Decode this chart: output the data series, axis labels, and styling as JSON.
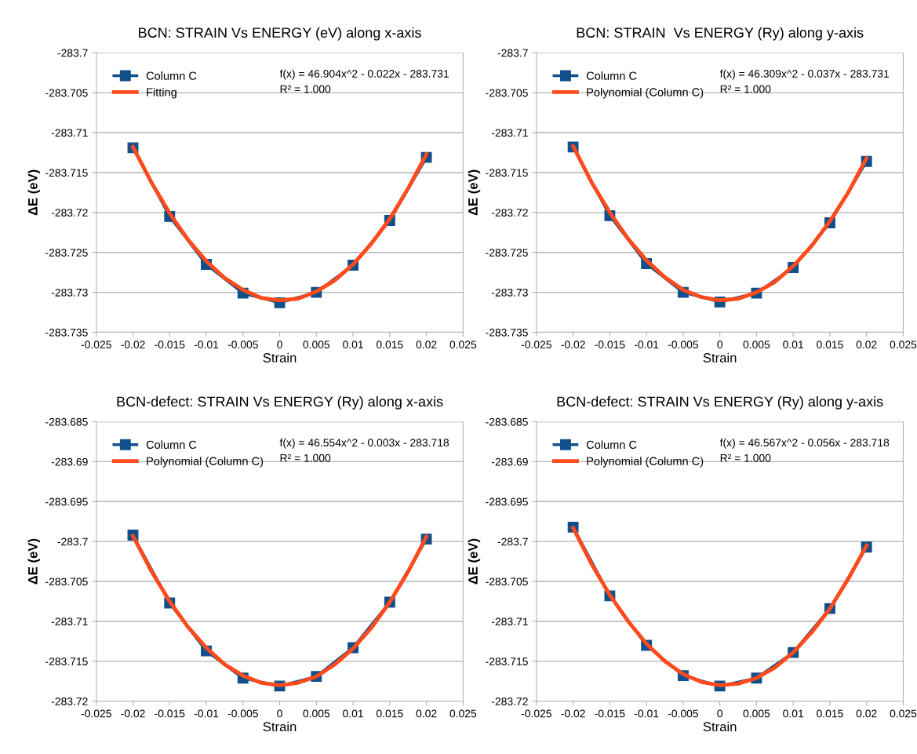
{
  "chart_data": [
    {
      "type": "line",
      "title": "BCN: STRAIN Vs ENERGY (eV) along x-axis",
      "xlabel": "Strain",
      "ylabel": "ΔE (eV)",
      "annotations": [
        "f(x) = 46.904x^2 - 0.022x - 283.731",
        "R² = 1.000"
      ],
      "xlim": [
        -0.025,
        0.025
      ],
      "xticks": [
        -0.025,
        -0.02,
        -0.015,
        -0.01,
        -0.005,
        0,
        0.005,
        0.01,
        0.015,
        0.02,
        0.025
      ],
      "ylim": [
        -283.735,
        -283.7
      ],
      "yticks": [
        -283.735,
        -283.73,
        -283.725,
        -283.72,
        -283.715,
        -283.71,
        -283.705,
        -283.7
      ],
      "grid": "y",
      "legend": "top left",
      "series": [
        {
          "name": "Column C",
          "color": "#114f8c",
          "marker": "square",
          "x": [
            -0.02,
            -0.015,
            -0.01,
            -0.005,
            0,
            0.005,
            0.01,
            0.015,
            0.02
          ],
          "values": [
            -283.7119,
            -283.7205,
            -283.7265,
            -283.7301,
            -283.7313,
            -283.73,
            -283.7266,
            -283.721,
            -283.7131
          ]
        },
        {
          "name": "Fitting",
          "color": "#ff4a1c",
          "marker": "none",
          "x": [
            -0.02,
            -0.0175,
            -0.015,
            -0.0125,
            -0.01,
            -0.0075,
            -0.005,
            -0.0025,
            0,
            0.0025,
            0.005,
            0.0075,
            0.01,
            0.0125,
            0.015,
            0.0175,
            0.02
          ],
          "values": [
            -283.7118,
            -283.7162,
            -283.7201,
            -283.7234,
            -283.7261,
            -283.7282,
            -283.7297,
            -283.7307,
            -283.731,
            -283.7308,
            -283.7299,
            -283.7285,
            -283.7265,
            -283.7239,
            -283.7208,
            -283.717,
            -283.7127
          ]
        }
      ]
    },
    {
      "type": "line",
      "title": "BCN: STRAIN  Vs ENERGY (Ry) along y-axis",
      "xlabel": "Strain",
      "ylabel": "ΔE (eV)",
      "annotations": [
        "f(x) = 46.309x^2 - 0.037x - 283.731",
        "R² = 1.000"
      ],
      "xlim": [
        -0.025,
        0.025
      ],
      "xticks": [
        -0.025,
        -0.02,
        -0.015,
        -0.01,
        -0.005,
        0,
        0.005,
        0.01,
        0.015,
        0.02,
        0.025
      ],
      "ylim": [
        -283.735,
        -283.7
      ],
      "yticks": [
        -283.735,
        -283.73,
        -283.725,
        -283.72,
        -283.715,
        -283.71,
        -283.705,
        -283.7
      ],
      "grid": "y",
      "legend": "top left",
      "series": [
        {
          "name": "Column C",
          "color": "#114f8c",
          "marker": "square",
          "x": [
            -0.02,
            -0.015,
            -0.01,
            -0.005,
            0,
            0.005,
            0.01,
            0.015,
            0.02
          ],
          "values": [
            -283.7118,
            -283.7204,
            -283.7264,
            -283.73,
            -283.7312,
            -283.7301,
            -283.7269,
            -283.7213,
            -283.7136
          ]
        },
        {
          "name": "Polynomial (Column C)",
          "color": "#ff4a1c",
          "marker": "none",
          "x": [
            -0.02,
            -0.0175,
            -0.015,
            -0.0125,
            -0.01,
            -0.0075,
            -0.005,
            -0.0025,
            0,
            0.0025,
            0.005,
            0.0075,
            0.01,
            0.0125,
            0.015,
            0.0175,
            0.02
          ],
          "values": [
            -283.7117,
            -283.7162,
            -283.72,
            -283.7233,
            -283.726,
            -283.7281,
            -283.7297,
            -283.7306,
            -283.731,
            -283.7308,
            -283.73,
            -283.7287,
            -283.7267,
            -283.7242,
            -283.7211,
            -283.7175,
            -283.7132
          ]
        }
      ]
    },
    {
      "type": "line",
      "title": "BCN-defect: STRAIN Vs ENERGY (Ry) along x-axis",
      "xlabel": "Strain",
      "ylabel": "ΔE (eV)",
      "annotations": [
        "f(x) = 46.554x^2 - 0.003x - 283.718",
        "R² = 1.000"
      ],
      "xlim": [
        -0.025,
        0.025
      ],
      "xticks": [
        -0.025,
        -0.02,
        -0.015,
        -0.01,
        -0.005,
        0,
        0.005,
        0.01,
        0.015,
        0.02,
        0.025
      ],
      "ylim": [
        -283.72,
        -283.685
      ],
      "yticks": [
        -283.72,
        -283.715,
        -283.71,
        -283.705,
        -283.7,
        -283.695,
        -283.69,
        -283.685
      ],
      "grid": "y",
      "legend": "top left",
      "series": [
        {
          "name": "Column C",
          "color": "#114f8c",
          "marker": "square",
          "x": [
            -0.02,
            -0.015,
            -0.01,
            -0.005,
            0,
            0.005,
            0.01,
            0.015,
            0.02
          ],
          "values": [
            -283.6992,
            -283.7077,
            -283.7137,
            -283.7171,
            -283.7181,
            -283.7169,
            -283.7133,
            -283.7076,
            -283.6997
          ]
        },
        {
          "name": "Polynomial (Column C)",
          "color": "#ff4a1c",
          "marker": "none",
          "x": [
            -0.02,
            -0.0175,
            -0.015,
            -0.0125,
            -0.01,
            -0.0075,
            -0.005,
            -0.0025,
            0,
            0.0025,
            0.005,
            0.0075,
            0.01,
            0.0125,
            0.015,
            0.0175,
            0.02
          ],
          "values": [
            -283.6993,
            -283.7037,
            -283.7075,
            -283.7107,
            -283.7133,
            -283.7154,
            -283.7168,
            -283.7177,
            -283.718,
            -283.7177,
            -283.7169,
            -283.7154,
            -283.7134,
            -283.7108,
            -283.7076,
            -283.7038,
            -283.6994
          ]
        }
      ]
    },
    {
      "type": "line",
      "title": "BCN-defect: STRAIN Vs ENERGY (Ry) along y-axis",
      "xlabel": "Strain",
      "ylabel": "ΔE (eV)",
      "annotations": [
        "f(x) = 46.567x^2 - 0.056x - 283.718",
        "R² = 1.000"
      ],
      "xlim": [
        -0.025,
        0.025
      ],
      "xticks": [
        -0.025,
        -0.02,
        -0.015,
        -0.01,
        -0.005,
        0,
        0.005,
        0.01,
        0.015,
        0.02,
        0.025
      ],
      "ylim": [
        -283.72,
        -283.685
      ],
      "yticks": [
        -283.72,
        -283.715,
        -283.71,
        -283.705,
        -283.7,
        -283.695,
        -283.69,
        -283.685
      ],
      "grid": "y",
      "legend": "top left",
      "series": [
        {
          "name": "Column C",
          "color": "#114f8c",
          "marker": "square",
          "x": [
            -0.02,
            -0.015,
            -0.01,
            -0.005,
            0,
            0.005,
            0.01,
            0.015,
            0.02
          ],
          "values": [
            -283.6982,
            -283.7068,
            -283.713,
            -283.7168,
            -283.7181,
            -283.7171,
            -283.7139,
            -283.7084,
            -283.7007
          ]
        },
        {
          "name": "Polynomial (Column C)",
          "color": "#ff4a1c",
          "marker": "none",
          "x": [
            -0.02,
            -0.0175,
            -0.015,
            -0.0125,
            -0.01,
            -0.0075,
            -0.005,
            -0.0025,
            0,
            0.0025,
            0.005,
            0.0075,
            0.01,
            0.0125,
            0.015,
            0.0175,
            0.02
          ],
          "values": [
            -283.6983,
            -283.7028,
            -283.7067,
            -283.71,
            -283.7128,
            -283.715,
            -283.7166,
            -283.7176,
            -283.718,
            -283.7178,
            -283.7171,
            -283.7158,
            -283.7139,
            -283.7114,
            -283.7084,
            -283.7047,
            -283.7005
          ]
        }
      ]
    }
  ]
}
